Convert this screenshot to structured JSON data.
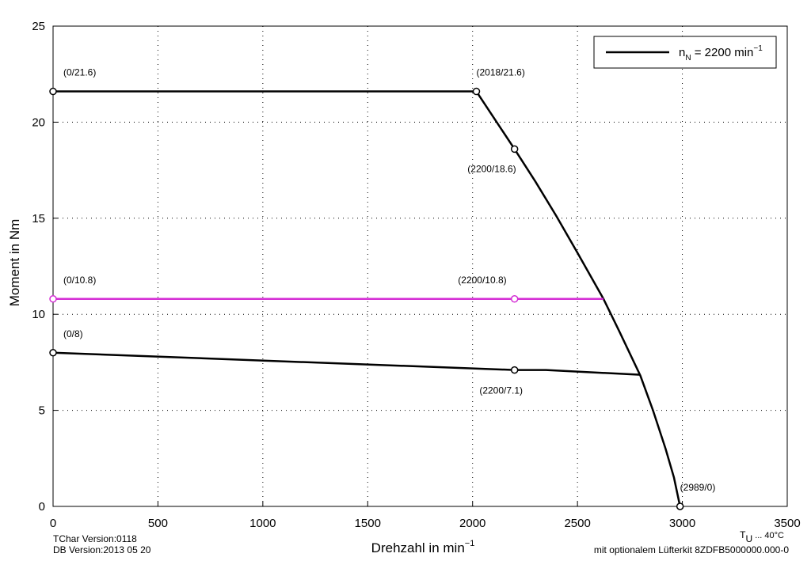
{
  "chart_data": {
    "type": "line",
    "xlabel": {
      "text": "Drehzahl in min",
      "sup": "−1"
    },
    "ylabel": "Moment in Nm",
    "xlim": [
      0,
      3500
    ],
    "xticks": [
      0,
      500,
      1000,
      1500,
      2000,
      2500,
      3000,
      3500
    ],
    "ylim": [
      0,
      25
    ],
    "yticks": [
      0,
      5,
      10,
      15,
      20,
      25
    ],
    "grid": true,
    "series": [
      {
        "color": "#000000",
        "x": [
          0,
          2018,
          2200,
          2300,
          2400,
          2500,
          2624,
          2700,
          2800,
          2860,
          2920,
          2960,
          2989
        ],
        "values": [
          21.6,
          21.6,
          18.6,
          16.9,
          15.1,
          13.2,
          10.8,
          9.1,
          6.8,
          5,
          3,
          1.5,
          0
        ]
      },
      {
        "color": "#d42ed4",
        "x": [
          0,
          2200,
          2624
        ],
        "values": [
          10.8,
          10.8,
          10.8
        ]
      },
      {
        "color": "#000000",
        "x": [
          0,
          2200,
          2350,
          2800
        ],
        "values": [
          8,
          7.1,
          7.1,
          6.85
        ]
      }
    ],
    "legend": {
      "position": "upper right",
      "color": "#000000",
      "text": "n",
      "sub": "N",
      "text2": " = 2200 min",
      "sup": "−1"
    },
    "annotations": [
      {
        "text": "(0/21.6)",
        "x": 0,
        "y": 21.6,
        "color": "#000000",
        "placement": "above-right"
      },
      {
        "text": "(2018/21.6)",
        "x": 2018,
        "y": 21.6,
        "color": "#000000",
        "placement": "above"
      },
      {
        "text": "(2200/18.6)",
        "x": 2200,
        "y": 18.6,
        "color": "#000000",
        "placement": "below-left"
      },
      {
        "text": "(0/10.8)",
        "x": 0,
        "y": 10.8,
        "color": "#d42ed4",
        "placement": "above-right"
      },
      {
        "text": "(2200/10.8)",
        "x": 2200,
        "y": 10.8,
        "color": "#d42ed4",
        "placement": "above-left"
      },
      {
        "text": "(0/8)",
        "x": 0,
        "y": 8,
        "color": "#000000",
        "placement": "above-right"
      },
      {
        "text": "(2200/7.1)",
        "x": 2200,
        "y": 7.1,
        "color": "#000000",
        "placement": "below"
      },
      {
        "text": "(2989/0)",
        "x": 2989,
        "y": 0,
        "color": "#000000",
        "placement": "above"
      }
    ],
    "footer": {
      "tchar": "TChar Version:0118",
      "db": "DB Version:2013 05 20",
      "temp": {
        "text": "T",
        "sub": "U",
        "text2": " ... 40°C"
      },
      "note": "mit optionalem Lüfterkit 8ZDFB5000000.000-0",
      "note_color": "#d42ed4"
    }
  }
}
